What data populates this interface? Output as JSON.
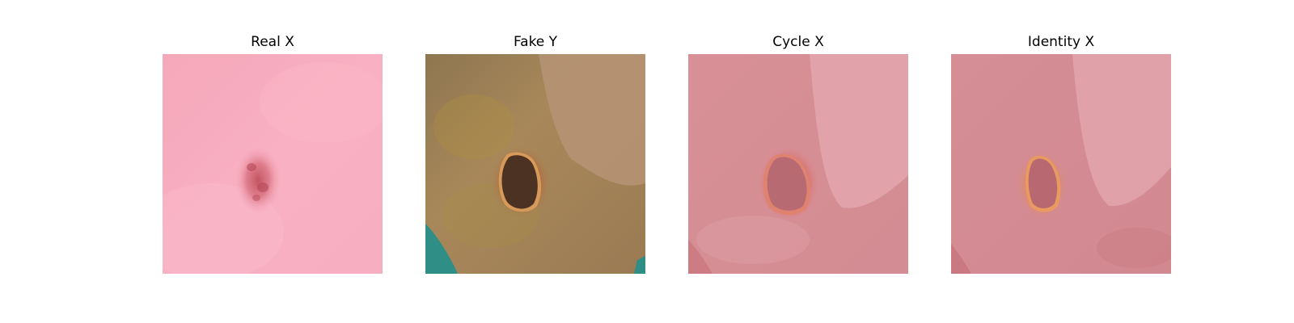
{
  "panels": [
    {
      "title": "Real X"
    },
    {
      "title": "Fake Y"
    },
    {
      "title": "Cycle X"
    },
    {
      "title": "Identity X"
    }
  ]
}
